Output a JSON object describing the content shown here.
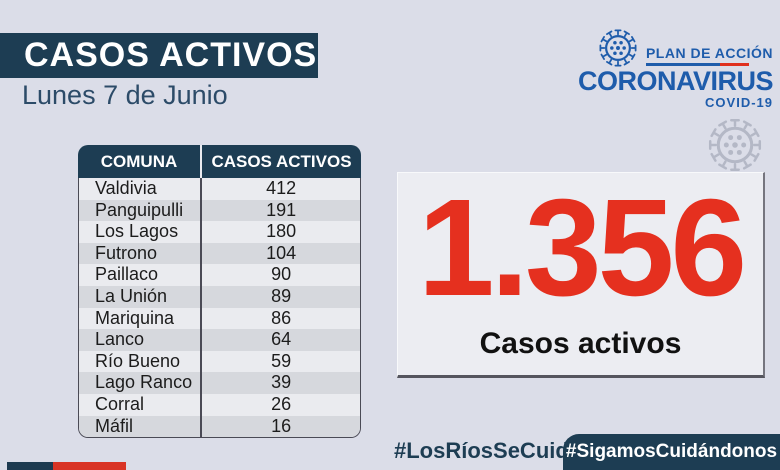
{
  "header": {
    "title": "CASOS ACTIVOS",
    "date": "Lunes 7 de Junio"
  },
  "logo": {
    "plan_label": "PLAN DE ACCIÓN",
    "brand": "CORONAVIRUS",
    "sub": "COVID-19",
    "icon": "virus-icon"
  },
  "table": {
    "headers": [
      "COMUNA",
      "CASOS ACTIVOS"
    ],
    "rows": [
      {
        "comuna": "Valdivia",
        "casos": "412"
      },
      {
        "comuna": "Panguipulli",
        "casos": "191"
      },
      {
        "comuna": "Los Lagos",
        "casos": "180"
      },
      {
        "comuna": "Futrono",
        "casos": "104"
      },
      {
        "comuna": "Paillaco",
        "casos": "90"
      },
      {
        "comuna": "La Unión",
        "casos": "89"
      },
      {
        "comuna": "Mariquina",
        "casos": "86"
      },
      {
        "comuna": "Lanco",
        "casos": "64"
      },
      {
        "comuna": "Río Bueno",
        "casos": "59"
      },
      {
        "comuna": "Lago Ranco",
        "casos": "39"
      },
      {
        "comuna": "Corral",
        "casos": "26"
      },
      {
        "comuna": "Máfil",
        "casos": "16"
      }
    ]
  },
  "summary": {
    "total": "1.356",
    "label": "Casos activos"
  },
  "footer": {
    "hashtag_left": "#LosRíosSeCuida",
    "hashtag_right": "#SigamosCuidándonos"
  },
  "colors": {
    "background": "#dbdde8",
    "navy": "#1d3d53",
    "logo_blue": "#1e5cab",
    "accent_red": "#e5301f",
    "gov_red": "#d93425",
    "row_light": "#eaebef",
    "row_dark": "#d6d8dd",
    "box_bg": "#ecedf2",
    "watermark_gray": "#b4b8c6"
  },
  "chart_data": {
    "type": "table",
    "title": "CASOS ACTIVOS",
    "subtitle": "Lunes 7 de Junio",
    "columns": [
      "COMUNA",
      "CASOS ACTIVOS"
    ],
    "rows": [
      [
        "Valdivia",
        412
      ],
      [
        "Panguipulli",
        191
      ],
      [
        "Los Lagos",
        180
      ],
      [
        "Futrono",
        104
      ],
      [
        "Paillaco",
        90
      ],
      [
        "La Unión",
        89
      ],
      [
        "Mariquina",
        86
      ],
      [
        "Lanco",
        64
      ],
      [
        "Río Bueno",
        59
      ],
      [
        "Lago Ranco",
        39
      ],
      [
        "Corral",
        26
      ],
      [
        "Máfil",
        16
      ]
    ],
    "total": 1356,
    "total_label": "Casos activos"
  }
}
